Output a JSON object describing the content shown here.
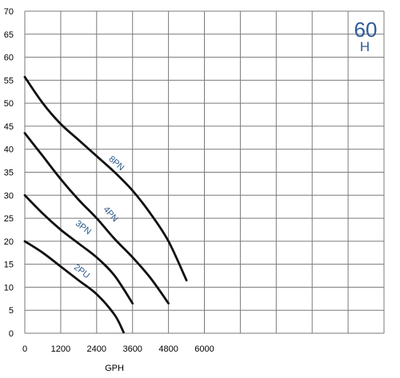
{
  "chart_data": {
    "type": "line",
    "xlabel": "GPH",
    "ylabel": "",
    "xlim": [
      0,
      12000
    ],
    "ylim": [
      0,
      70
    ],
    "xticks": [
      0,
      1200,
      2400,
      3600,
      4800,
      6000
    ],
    "yticks": [
      0,
      5,
      10,
      15,
      20,
      25,
      30,
      35,
      40,
      45,
      50,
      55,
      60,
      65,
      70
    ],
    "x_grid_step": 1200,
    "grid": true,
    "badge": {
      "main": "60",
      "sub": "H"
    },
    "colors": {
      "line": "#111111",
      "label": "#2b5a8a",
      "grid": "#7a7a7a",
      "badge": "#2d5b99"
    },
    "series": [
      {
        "name": "8PN",
        "x": [
          0,
          600,
          1200,
          1800,
          2400,
          3000,
          3600,
          4200,
          4800,
          5400
        ],
        "y": [
          55.7,
          50,
          45.5,
          42,
          38.5,
          35,
          31,
          26,
          20,
          11.5
        ],
        "label_pos": [
          3000,
          36.5
        ]
      },
      {
        "name": "4PN",
        "x": [
          0,
          600,
          1200,
          1800,
          2400,
          3000,
          3600,
          4200,
          4800
        ],
        "y": [
          43.5,
          38.5,
          33.5,
          29,
          25,
          20.5,
          16.5,
          12,
          6.5
        ],
        "label_pos": [
          2800,
          25.5
        ]
      },
      {
        "name": "3PN",
        "x": [
          0,
          600,
          1200,
          1800,
          2400,
          3000,
          3600
        ],
        "y": [
          30,
          26,
          22.5,
          19.5,
          16.5,
          12.5,
          6.5
        ],
        "label_pos": [
          1900,
          22.5
        ]
      },
      {
        "name": "2PU",
        "x": [
          0,
          600,
          1200,
          1800,
          2400,
          3000,
          3300
        ],
        "y": [
          20,
          17.5,
          14.5,
          11.5,
          8.5,
          4,
          0.2
        ],
        "label_pos": [
          1850,
          13
        ]
      }
    ]
  }
}
